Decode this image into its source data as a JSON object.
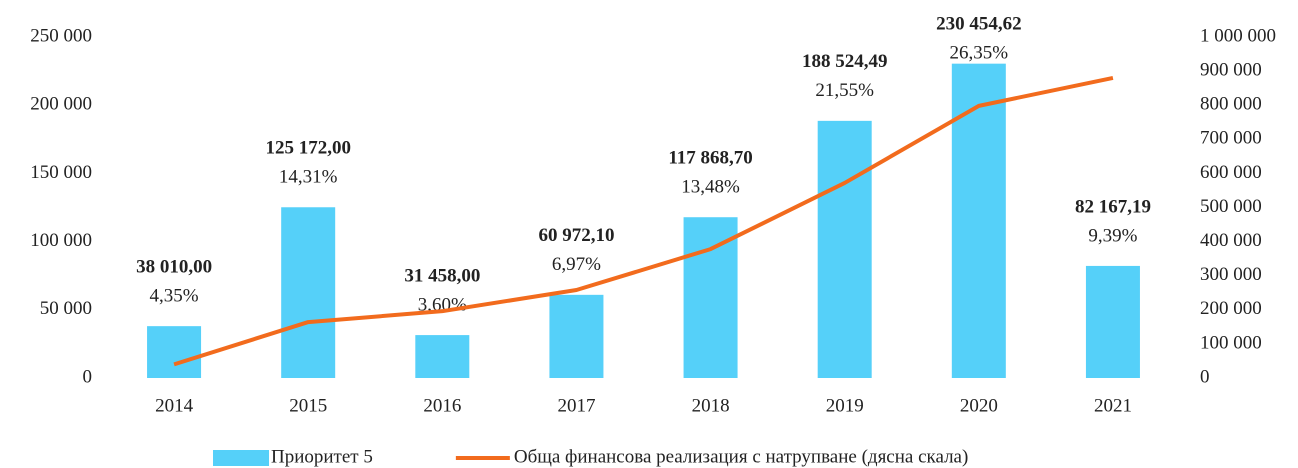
{
  "chart_data": {
    "type": "bar_line",
    "categories": [
      "2014",
      "2015",
      "2016",
      "2017",
      "2018",
      "2019",
      "2020",
      "2021"
    ],
    "series": [
      {
        "name": "Приоритет 5",
        "color": "#55d0f9",
        "type": "bar",
        "values": [
          38010.0,
          125172.0,
          31458.0,
          60972.1,
          117868.7,
          188524.49,
          230454.62,
          82167.19
        ],
        "value_labels": [
          "38 010,00",
          "125 172,00",
          "31 458,00",
          "60 972,10",
          "117 868,70",
          "188 524,49",
          "230 454,62",
          "82 167,19"
        ],
        "percent_labels": [
          "4,35%",
          "14,31%",
          "3,60%",
          "6,97%",
          "13,48%",
          "21,55%",
          "26,35%",
          "9,39%"
        ]
      },
      {
        "name": "Обща финансова реализация с натрупване (дясна скала)",
        "color": "#f26b1d",
        "type": "line",
        "axis": "y2",
        "values": [
          40000,
          164000,
          196000,
          258000,
          378000,
          572000,
          798000,
          880000
        ]
      }
    ],
    "ylim": [
      0,
      250000
    ],
    "yticks": [
      0,
      {
        "value": 50000,
        "label": "50 000"
      },
      {
        "value": 100000,
        "label": "100 000"
      },
      {
        "value": 150000,
        "label": "150 000"
      },
      {
        "value": 200000,
        "label": "200 000"
      },
      {
        "value": 250000,
        "label": "250 000"
      }
    ],
    "y2lim": [
      0,
      1000000
    ],
    "y2ticks": [
      0,
      {
        "value": 100000,
        "label": "100 000"
      },
      {
        "value": 200000,
        "label": "200 000"
      },
      {
        "value": 300000,
        "label": "300 000"
      },
      {
        "value": 400000,
        "label": "400 000"
      },
      {
        "value": 500000,
        "label": "500 000"
      },
      {
        "value": 600000,
        "label": "600 000"
      },
      {
        "value": 700000,
        "label": "700 000"
      },
      {
        "value": 800000,
        "label": "800 000"
      },
      {
        "value": 900000,
        "label": "900 000"
      },
      {
        "value": 1000000,
        "label": "1 000 000"
      }
    ],
    "grid": false,
    "legend": "bottom"
  }
}
